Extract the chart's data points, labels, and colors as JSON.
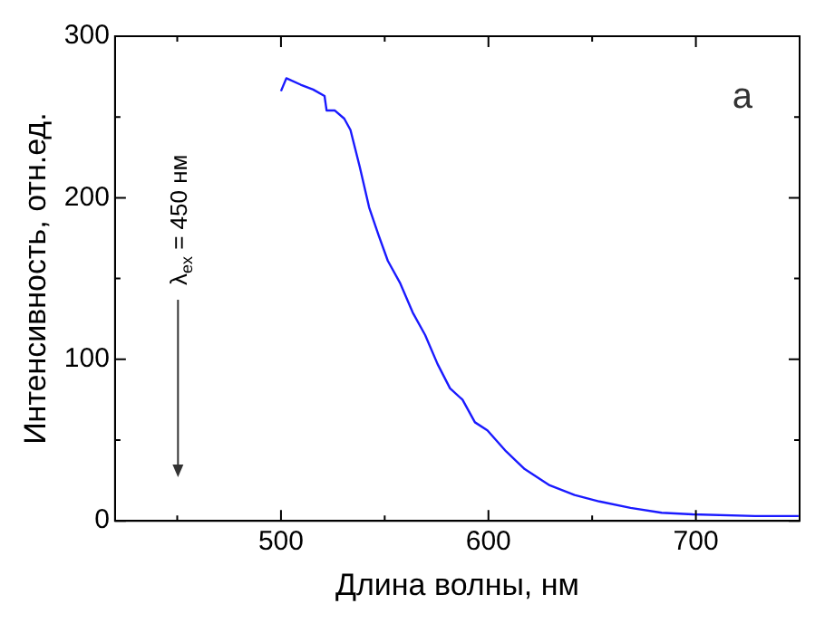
{
  "chart_data": {
    "type": "line",
    "xlabel": "Длина волны, нм",
    "ylabel": "Интенсивность, отн.ед.",
    "x": [
      500,
      502.6,
      509.5,
      515.5,
      521,
      522,
      526,
      530.5,
      533.5,
      538,
      542.5,
      547,
      551.5,
      557.5,
      563.5,
      569.5,
      575.5,
      581.5,
      587.5,
      593.5,
      599.5,
      608.5,
      617.5,
      629.5,
      641.5,
      653.5,
      668.5,
      683.5,
      698.5,
      728.5,
      749.5
    ],
    "series": [
      {
        "color": "#1a1aff",
        "values": [
          266,
          274,
          270,
          267,
          263,
          254,
          254,
          249,
          242,
          219,
          194,
          177,
          161,
          147,
          129,
          115,
          97,
          82,
          75,
          61,
          56,
          43,
          32,
          22,
          16,
          12,
          8,
          5,
          4,
          3,
          3
        ]
      }
    ],
    "xlim": [
      420,
      750
    ],
    "xticks": [
      {
        "value": 450,
        "label": null
      },
      500,
      {
        "value": 550,
        "label": null
      },
      600,
      {
        "value": 650,
        "label": null
      },
      700
    ],
    "ylim": [
      0,
      300
    ],
    "yticks": [
      0,
      {
        "value": 50,
        "label": null
      },
      100,
      {
        "value": 150,
        "label": null
      },
      200,
      {
        "value": 250,
        "label": null
      },
      300
    ],
    "marker": "none",
    "line_style": "solid",
    "legend": false,
    "annotations": [
      "λ$_{ex}$ = 450 нм",
      "а"
    ]
  }
}
